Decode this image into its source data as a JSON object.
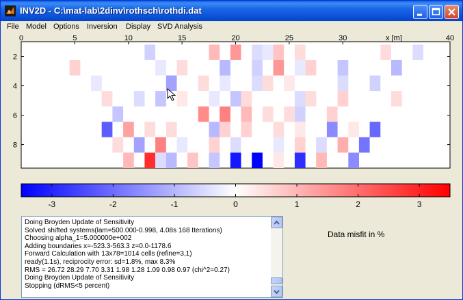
{
  "window": {
    "title": "INV2D - C:\\mat-lab\\2dinv\\rothsch\\rothdi.dat",
    "icon": "matlab-icon",
    "controls": [
      "minimize-icon",
      "maximize-icon",
      "close-icon"
    ]
  },
  "menu": [
    "File",
    "Model",
    "Options",
    "Inversion",
    "Display",
    "SVD Analysis"
  ],
  "section_plot": {
    "x_ticks": [
      "0",
      "5",
      "10",
      "15",
      "20",
      "25",
      "30",
      "40"
    ],
    "x_unit_label": "x [m]",
    "x_range": [
      0,
      40
    ],
    "y_ticks": [
      "2",
      "4",
      "6",
      "8"
    ],
    "y_range": [
      1,
      9.6
    ],
    "cell_rows": [
      [
        0,
        0,
        0,
        0,
        0,
        0,
        0,
        0,
        0,
        0,
        0,
        -0.4,
        0,
        0,
        0,
        0,
        0,
        0.6,
        0,
        0.9,
        0,
        -0.3,
        -0.2,
        0.5,
        0,
        0.3,
        0,
        0,
        0,
        0,
        0,
        0,
        0,
        0.3,
        0,
        0,
        -0.3,
        0,
        0
      ],
      [
        0,
        0,
        0,
        0,
        0.4,
        0,
        0,
        0,
        0,
        0,
        0,
        0,
        -0.2,
        0,
        0.3,
        0,
        0,
        0,
        -0.6,
        0,
        0,
        -0.4,
        0,
        0.9,
        0,
        -0.2,
        0.4,
        0,
        0,
        -0.5,
        0,
        0,
        0,
        0,
        -0.6,
        0,
        0,
        0,
        0
      ],
      [
        0,
        0,
        0,
        0,
        0,
        0,
        -0.2,
        0,
        0,
        0,
        0,
        0,
        0,
        -0.8,
        0,
        0,
        0.3,
        0,
        -0.2,
        0,
        0,
        -0.3,
        0.3,
        0,
        0.2,
        0,
        0,
        0,
        0,
        -0.3,
        0,
        0,
        -0.4,
        0,
        0,
        0,
        0,
        0,
        0
      ],
      [
        0,
        0,
        0,
        0,
        0,
        0,
        0,
        0.3,
        0,
        0,
        -0.3,
        0,
        -0.5,
        0,
        0.2,
        0,
        0,
        -0.2,
        0,
        -0.5,
        0.3,
        0,
        0,
        0,
        0,
        -0.3,
        0.3,
        0,
        0,
        0.4,
        0,
        0,
        0,
        0,
        0.3,
        0,
        0,
        0,
        0
      ],
      [
        0,
        0,
        0,
        0,
        0,
        0,
        0,
        0,
        -0.5,
        0,
        0,
        0,
        0,
        0,
        0,
        0,
        1.0,
        0,
        1.1,
        0,
        0.6,
        0,
        0.3,
        0,
        0.3,
        -0.4,
        0,
        0,
        0.4,
        0,
        0,
        0,
        0,
        0,
        0,
        0,
        0,
        0,
        0
      ],
      [
        0,
        0,
        0,
        0,
        0,
        0,
        0,
        -1.4,
        0,
        0.8,
        0,
        0.3,
        0,
        0.3,
        0,
        0,
        0,
        -0.6,
        0.4,
        0,
        0.4,
        0,
        0,
        0.3,
        0,
        0.2,
        0,
        0,
        -1.0,
        0,
        0.2,
        0,
        -1.3,
        0,
        0,
        0,
        0,
        0,
        0
      ],
      [
        0,
        0,
        0,
        0,
        0,
        0,
        0,
        0,
        0.3,
        0,
        -0.8,
        0,
        1.1,
        0,
        -0.2,
        0,
        0,
        0.4,
        0,
        -0.3,
        0,
        0,
        0,
        -0.2,
        0,
        0.4,
        0,
        -0.3,
        0,
        0.7,
        0,
        -1.2,
        0,
        0,
        0,
        0,
        0,
        0,
        0
      ],
      [
        0,
        0,
        0,
        0,
        0,
        0,
        0,
        0,
        0,
        0.6,
        0,
        1.8,
        -0.3,
        -0.6,
        0,
        0.5,
        0,
        -0.5,
        0,
        -2.0,
        0,
        -2.2,
        0,
        0.2,
        0,
        -1.8,
        0,
        0.6,
        0,
        0,
        -1.0,
        0,
        0,
        0,
        0,
        0,
        0,
        0,
        0
      ]
    ]
  },
  "colorbar": {
    "tick_labels": [
      "-3",
      "-2",
      "-1",
      "0",
      "1",
      "2",
      "3"
    ],
    "range": [
      -3.5,
      3.5
    ],
    "negative_color": "#0000ff",
    "positive_color": "#ff0000"
  },
  "console": {
    "lines": [
      "Doing Broyden Update of Sensitivity",
      "Solved shifted systems(lam=500.000-0.998, 4.08s 168 Iterations)",
      "Choosing alpha_1=5.000000e+002",
      "Adding boundaries x=-523.3-563.3  z=0.0-1178.6",
      "Forward Calculation with 13x78=1014 cells (refine=3,1)",
      "ready(1.1s), reciprocity error: sd=1.8%, max 8.3%",
      "RMS = 26.72 28.29 7.70 3.31 1.98 1.28 1.09 0.98 0.97 (chi^2=0.27)",
      "Doing Broyden Update of Sensitivity",
      "Stopping (dRMS<5 percent)"
    ]
  },
  "misfit_label": "Data misfit in %"
}
